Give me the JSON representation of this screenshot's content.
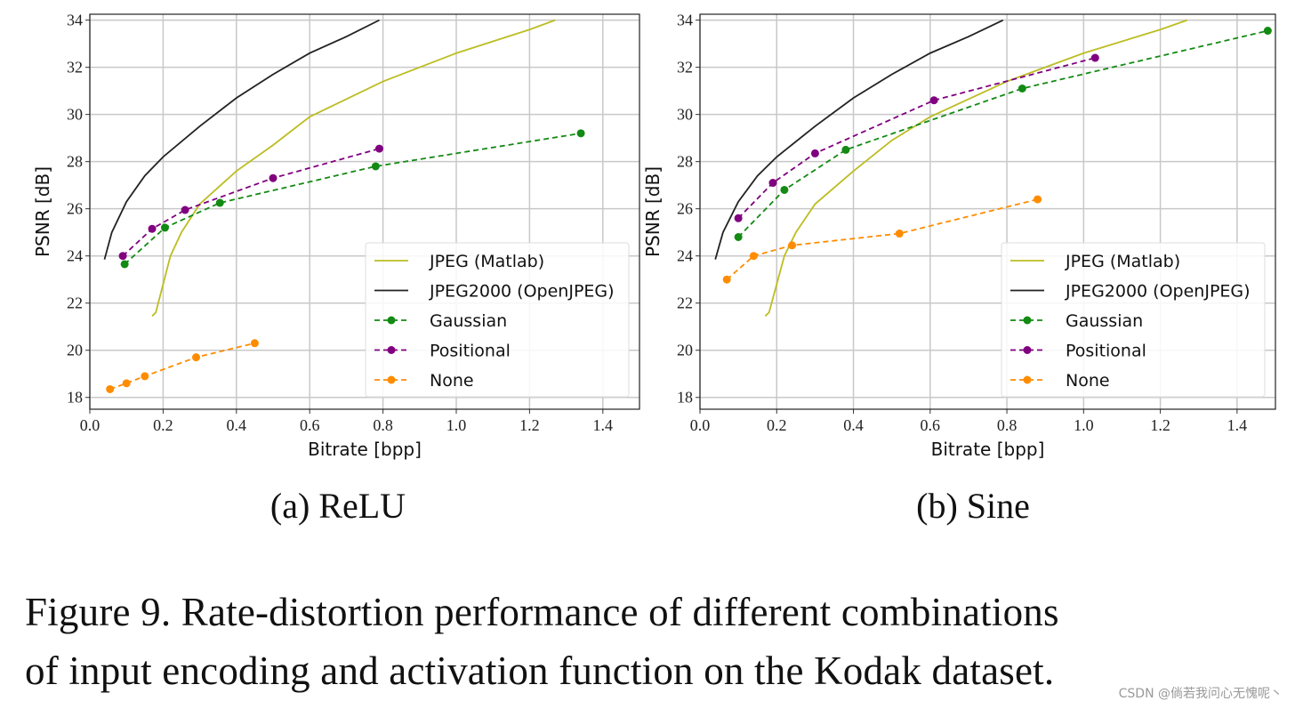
{
  "chart_data": [
    {
      "type": "line",
      "subtitle": "(a) ReLU",
      "xlabel": "Bitrate [bpp]",
      "ylabel": "PSNR [dB]",
      "xlim": [
        0,
        1.5
      ],
      "ylim": [
        17.5,
        34.25
      ],
      "xticks": [
        "0.0",
        "0.2",
        "0.4",
        "0.6",
        "0.8",
        "1.0",
        "1.2",
        "1.4"
      ],
      "yticks": [
        "18",
        "20",
        "22",
        "24",
        "26",
        "28",
        "30",
        "32",
        "34"
      ],
      "grid": true,
      "legend": "lower-right",
      "series": [
        {
          "name": "JPEG (Matlab)",
          "color": "#bcbd22",
          "style": "solid",
          "markers": false,
          "x": [
            0.17,
            0.18,
            0.2,
            0.22,
            0.25,
            0.3,
            0.4,
            0.5,
            0.6,
            0.8,
            1.0,
            1.2,
            1.27
          ],
          "y": [
            21.45,
            21.6,
            22.8,
            24.0,
            25.0,
            26.2,
            27.6,
            28.7,
            29.9,
            31.4,
            32.6,
            33.6,
            34.0
          ]
        },
        {
          "name": "JPEG2000 (OpenJPEG)",
          "color": "#222222",
          "style": "solid",
          "markers": false,
          "x": [
            0.04,
            0.06,
            0.1,
            0.15,
            0.2,
            0.3,
            0.4,
            0.5,
            0.6,
            0.7,
            0.79
          ],
          "y": [
            23.85,
            25.0,
            26.3,
            27.4,
            28.2,
            29.5,
            30.7,
            31.7,
            32.6,
            33.3,
            34.0
          ]
        },
        {
          "name": "Gaussian",
          "color": "#138a13",
          "style": "dashed",
          "markers": true,
          "x": [
            0.095,
            0.205,
            0.355,
            0.78,
            1.34
          ],
          "y": [
            23.65,
            25.2,
            26.25,
            27.8,
            29.2
          ]
        },
        {
          "name": "Positional",
          "color": "#800080",
          "style": "dashed",
          "markers": true,
          "x": [
            0.09,
            0.17,
            0.26,
            0.5,
            0.79
          ],
          "y": [
            24.0,
            25.15,
            25.95,
            27.3,
            28.55
          ]
        },
        {
          "name": "None",
          "color": "#ff8c00",
          "style": "dashed",
          "markers": true,
          "x": [
            0.055,
            0.1,
            0.15,
            0.29,
            0.45
          ],
          "y": [
            18.35,
            18.6,
            18.9,
            19.7,
            20.3
          ]
        }
      ]
    },
    {
      "type": "line",
      "subtitle": "(b) Sine",
      "xlabel": "Bitrate [bpp]",
      "ylabel": "PSNR [dB]",
      "xlim": [
        0,
        1.5
      ],
      "ylim": [
        17.5,
        34.25
      ],
      "xticks": [
        "0.0",
        "0.2",
        "0.4",
        "0.6",
        "0.8",
        "1.0",
        "1.2",
        "1.4"
      ],
      "yticks": [
        "18",
        "20",
        "22",
        "24",
        "26",
        "28",
        "30",
        "32",
        "34"
      ],
      "grid": true,
      "legend": "lower-right",
      "series": [
        {
          "name": "JPEG (Matlab)",
          "color": "#bcbd22",
          "style": "solid",
          "markers": false,
          "x": [
            0.17,
            0.18,
            0.2,
            0.22,
            0.25,
            0.3,
            0.4,
            0.5,
            0.6,
            0.8,
            1.0,
            1.2,
            1.27
          ],
          "y": [
            21.45,
            21.6,
            22.8,
            24.0,
            25.0,
            26.2,
            27.6,
            28.9,
            29.9,
            31.4,
            32.6,
            33.6,
            34.0
          ]
        },
        {
          "name": "JPEG2000 (OpenJPEG)",
          "color": "#222222",
          "style": "solid",
          "markers": false,
          "x": [
            0.04,
            0.06,
            0.1,
            0.15,
            0.2,
            0.3,
            0.4,
            0.5,
            0.6,
            0.7,
            0.79
          ],
          "y": [
            23.85,
            25.0,
            26.3,
            27.4,
            28.2,
            29.5,
            30.7,
            31.7,
            32.6,
            33.3,
            34.0
          ]
        },
        {
          "name": "Gaussian",
          "color": "#138a13",
          "style": "dashed",
          "markers": true,
          "x": [
            0.1,
            0.22,
            0.38,
            0.84,
            1.48
          ],
          "y": [
            24.8,
            26.8,
            28.5,
            31.1,
            33.55
          ]
        },
        {
          "name": "Positional",
          "color": "#800080",
          "style": "dashed",
          "markers": true,
          "x": [
            0.1,
            0.19,
            0.3,
            0.61,
            1.03
          ],
          "y": [
            25.6,
            27.1,
            28.35,
            30.6,
            32.4
          ]
        },
        {
          "name": "None",
          "color": "#ff8c00",
          "style": "dashed",
          "markers": true,
          "x": [
            0.07,
            0.14,
            0.24,
            0.52,
            0.88
          ],
          "y": [
            23.0,
            24.0,
            24.45,
            24.95,
            26.4
          ]
        }
      ]
    }
  ],
  "caption": {
    "line1": "Figure 9.  Rate-distortion performance of different combinations",
    "line2": "of input encoding and activation function on the Kodak dataset."
  },
  "watermark": "CSDN @倘若我问心无愧呢丶"
}
